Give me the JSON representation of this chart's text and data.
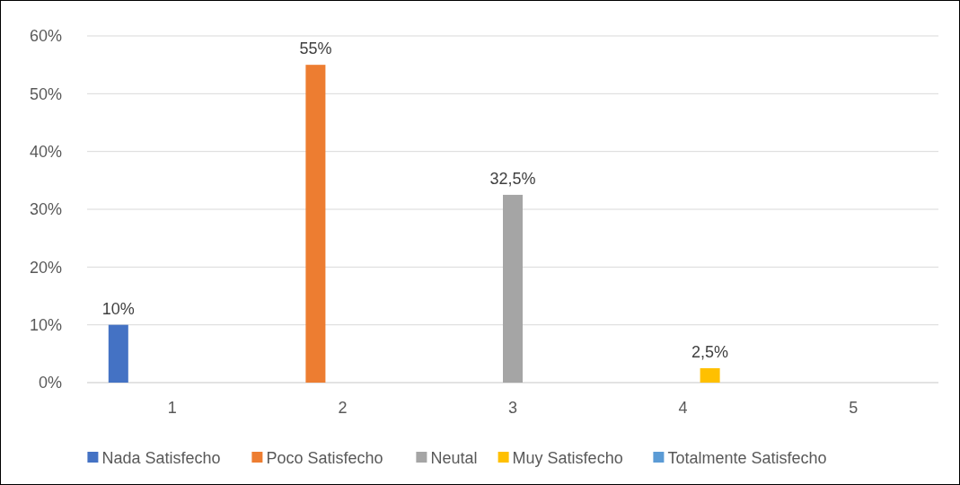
{
  "chart_data": {
    "type": "bar",
    "categories": [
      "1",
      "2",
      "3",
      "4",
      "5"
    ],
    "series": [
      {
        "name": "Nada Satisfecho",
        "color": "#4472c4",
        "values": [
          10,
          null,
          null,
          null,
          null
        ],
        "value_labels": [
          "10%",
          null,
          null,
          null,
          null
        ]
      },
      {
        "name": "Poco Satisfecho",
        "color": "#ed7d31",
        "values": [
          null,
          55,
          null,
          null,
          null
        ],
        "value_labels": [
          null,
          "55%",
          null,
          null,
          null
        ]
      },
      {
        "name": "Neutal",
        "color": "#a5a5a5",
        "values": [
          null,
          null,
          32.5,
          null,
          null
        ],
        "value_labels": [
          null,
          null,
          "32,5%",
          null,
          null
        ]
      },
      {
        "name": "Muy Satisfecho",
        "color": "#ffc000",
        "values": [
          null,
          null,
          null,
          2.5,
          null
        ],
        "value_labels": [
          null,
          null,
          null,
          "2,5%",
          null
        ]
      },
      {
        "name": "Totalmente Satisfecho",
        "color": "#5b9bd5",
        "values": [
          null,
          null,
          null,
          null,
          null
        ]
      }
    ],
    "ylim": [
      0,
      60
    ],
    "yticks": [
      {
        "value": 0,
        "label": "0%"
      },
      {
        "value": 10,
        "label": "10%"
      },
      {
        "value": 20,
        "label": "20%"
      },
      {
        "value": 30,
        "label": "30%"
      },
      {
        "value": 40,
        "label": "40%"
      },
      {
        "value": 50,
        "label": "50%"
      },
      {
        "value": 60,
        "label": "60%"
      }
    ],
    "grid": "y",
    "legend": "bottom"
  }
}
